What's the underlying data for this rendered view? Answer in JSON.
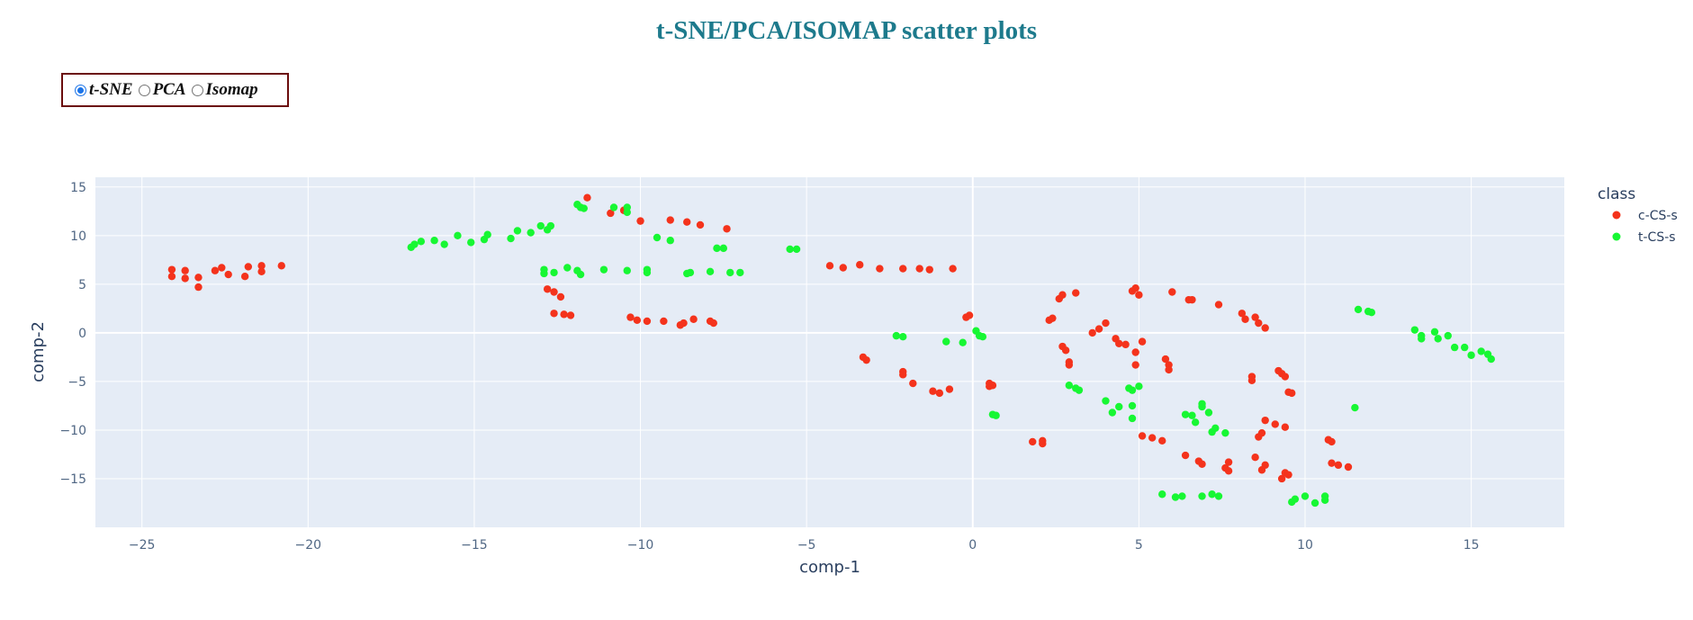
{
  "title": "t-SNE/PCA/ISOMAP scatter plots",
  "selector": {
    "options": [
      {
        "label": "t-SNE",
        "checked": true
      },
      {
        "label": "PCA",
        "checked": false
      },
      {
        "label": "Isomap",
        "checked": false
      }
    ]
  },
  "colors": {
    "title": "#1d7a8c",
    "plot_bg": "#e5ecf6",
    "grid": "#ffffff",
    "c-CS-s": "#f4331c",
    "t-CS-s": "#17f733"
  },
  "chart_data": {
    "type": "scatter",
    "xlabel": "comp-1",
    "ylabel": "comp-2",
    "xlim": [
      -26.4,
      17.8
    ],
    "ylim": [
      -20,
      16
    ],
    "xticks": [
      -25,
      -20,
      -15,
      -10,
      -5,
      0,
      5,
      10,
      15
    ],
    "yticks": [
      -15,
      -10,
      -5,
      0,
      5,
      10,
      15
    ],
    "xtick_labels": [
      "−25",
      "−20",
      "−15",
      "−10",
      "−5",
      "0",
      "5",
      "10",
      "15"
    ],
    "ytick_labels": [
      "−15",
      "−10",
      "−5",
      "0",
      "5",
      "10",
      "15"
    ],
    "grid": true,
    "legend_title": "class",
    "legend_position": "right",
    "series": [
      {
        "name": "c-CS-s",
        "points": [
          [
            -24.1,
            6.5
          ],
          [
            -24.1,
            5.8
          ],
          [
            -23.7,
            6.4
          ],
          [
            -23.7,
            5.6
          ],
          [
            -23.3,
            5.7
          ],
          [
            -23.3,
            4.7
          ],
          [
            -22.8,
            6.4
          ],
          [
            -22.6,
            6.7
          ],
          [
            -22.4,
            6.0
          ],
          [
            -21.9,
            5.8
          ],
          [
            -21.8,
            6.8
          ],
          [
            -21.4,
            6.9
          ],
          [
            -21.4,
            6.3
          ],
          [
            -20.8,
            6.9
          ],
          [
            -12.8,
            4.5
          ],
          [
            -12.6,
            4.2
          ],
          [
            -12.4,
            3.7
          ],
          [
            -12.6,
            2.0
          ],
          [
            -12.3,
            1.9
          ],
          [
            -12.1,
            1.8
          ],
          [
            -11.6,
            13.9
          ],
          [
            -10.9,
            12.3
          ],
          [
            -10.5,
            12.6
          ],
          [
            -10.3,
            1.6
          ],
          [
            -10.1,
            1.3
          ],
          [
            -10.0,
            11.5
          ],
          [
            -9.8,
            1.2
          ],
          [
            -9.3,
            1.2
          ],
          [
            -9.1,
            11.6
          ],
          [
            -8.8,
            0.8
          ],
          [
            -8.7,
            1.0
          ],
          [
            -8.6,
            11.4
          ],
          [
            -8.4,
            1.4
          ],
          [
            -8.2,
            11.1
          ],
          [
            -7.9,
            1.2
          ],
          [
            -7.8,
            1.0
          ],
          [
            -7.4,
            10.7
          ],
          [
            -4.3,
            6.9
          ],
          [
            -3.9,
            6.7
          ],
          [
            -3.4,
            7.0
          ],
          [
            -3.3,
            -2.5
          ],
          [
            -3.2,
            -2.8
          ],
          [
            -2.8,
            6.6
          ],
          [
            -2.1,
            6.6
          ],
          [
            -2.1,
            -4.0
          ],
          [
            -2.1,
            -4.3
          ],
          [
            -1.8,
            -5.2
          ],
          [
            -1.6,
            6.6
          ],
          [
            -1.3,
            6.5
          ],
          [
            -1.2,
            -6.0
          ],
          [
            -1.0,
            -6.2
          ],
          [
            -0.7,
            -5.8
          ],
          [
            -0.6,
            6.6
          ],
          [
            -0.2,
            1.6
          ],
          [
            -0.1,
            1.8
          ],
          [
            0.5,
            -5.2
          ],
          [
            0.5,
            -5.5
          ],
          [
            0.6,
            -5.4
          ],
          [
            1.8,
            -11.2
          ],
          [
            2.1,
            -11.1
          ],
          [
            2.1,
            -11.4
          ],
          [
            2.3,
            1.3
          ],
          [
            2.4,
            1.5
          ],
          [
            2.6,
            3.5
          ],
          [
            2.7,
            3.9
          ],
          [
            2.7,
            -1.4
          ],
          [
            2.8,
            -1.8
          ],
          [
            2.9,
            -3.0
          ],
          [
            2.9,
            -3.3
          ],
          [
            3.1,
            4.1
          ],
          [
            3.6,
            0.0
          ],
          [
            3.8,
            0.4
          ],
          [
            4.0,
            1.0
          ],
          [
            4.3,
            -0.6
          ],
          [
            4.4,
            -1.1
          ],
          [
            4.6,
            -1.2
          ],
          [
            4.8,
            4.3
          ],
          [
            4.9,
            4.6
          ],
          [
            4.9,
            -2.0
          ],
          [
            4.9,
            -3.3
          ],
          [
            5.0,
            3.9
          ],
          [
            5.1,
            -0.9
          ],
          [
            5.1,
            -10.6
          ],
          [
            5.4,
            -10.8
          ],
          [
            5.7,
            -11.1
          ],
          [
            5.8,
            -2.7
          ],
          [
            5.9,
            -3.3
          ],
          [
            5.9,
            -3.8
          ],
          [
            6.0,
            4.2
          ],
          [
            6.4,
            -12.6
          ],
          [
            6.5,
            3.4
          ],
          [
            6.6,
            3.4
          ],
          [
            6.8,
            -13.2
          ],
          [
            6.9,
            -13.5
          ],
          [
            7.4,
            2.9
          ],
          [
            7.6,
            -13.9
          ],
          [
            7.7,
            -13.3
          ],
          [
            7.7,
            -14.2
          ],
          [
            8.1,
            2.0
          ],
          [
            8.2,
            1.4
          ],
          [
            8.4,
            -4.5
          ],
          [
            8.4,
            -4.9
          ],
          [
            8.5,
            1.6
          ],
          [
            8.5,
            -12.8
          ],
          [
            8.6,
            -10.7
          ],
          [
            8.6,
            1.0
          ],
          [
            8.7,
            -10.3
          ],
          [
            8.7,
            -14.1
          ],
          [
            8.8,
            0.5
          ],
          [
            8.8,
            -9.0
          ],
          [
            8.8,
            -13.6
          ],
          [
            9.1,
            -9.4
          ],
          [
            9.2,
            -3.9
          ],
          [
            9.3,
            -15.0
          ],
          [
            9.3,
            -4.2
          ],
          [
            9.4,
            -9.7
          ],
          [
            9.4,
            -4.5
          ],
          [
            9.4,
            -14.4
          ],
          [
            9.5,
            -6.1
          ],
          [
            9.5,
            -14.6
          ],
          [
            9.6,
            -6.2
          ],
          [
            10.7,
            -11.0
          ],
          [
            10.8,
            -11.2
          ],
          [
            10.8,
            -13.4
          ],
          [
            11.0,
            -13.6
          ],
          [
            11.3,
            -13.8
          ]
        ]
      },
      {
        "name": "t-CS-s",
        "points": [
          [
            -16.9,
            8.8
          ],
          [
            -16.8,
            9.1
          ],
          [
            -16.6,
            9.4
          ],
          [
            -16.2,
            9.5
          ],
          [
            -15.9,
            9.1
          ],
          [
            -15.5,
            10.0
          ],
          [
            -15.1,
            9.3
          ],
          [
            -14.7,
            9.6
          ],
          [
            -14.6,
            10.1
          ],
          [
            -13.9,
            9.7
          ],
          [
            -13.7,
            10.5
          ],
          [
            -13.3,
            10.3
          ],
          [
            -13.0,
            11.0
          ],
          [
            -12.8,
            10.6
          ],
          [
            -12.7,
            11.0
          ],
          [
            -12.9,
            6.5
          ],
          [
            -12.9,
            6.1
          ],
          [
            -12.6,
            6.2
          ],
          [
            -12.2,
            6.7
          ],
          [
            -11.9,
            6.4
          ],
          [
            -11.8,
            6.0
          ],
          [
            -11.9,
            13.2
          ],
          [
            -11.8,
            12.9
          ],
          [
            -11.7,
            12.8
          ],
          [
            -11.1,
            6.5
          ],
          [
            -10.8,
            12.9
          ],
          [
            -10.4,
            12.9
          ],
          [
            -10.4,
            6.4
          ],
          [
            -10.4,
            12.4
          ],
          [
            -9.8,
            6.5
          ],
          [
            -9.8,
            6.2
          ],
          [
            -9.5,
            9.8
          ],
          [
            -9.1,
            9.5
          ],
          [
            -8.6,
            6.1
          ],
          [
            -8.5,
            6.2
          ],
          [
            -7.9,
            6.3
          ],
          [
            -7.7,
            8.7
          ],
          [
            -7.5,
            8.7
          ],
          [
            -7.3,
            6.2
          ],
          [
            -7.0,
            6.2
          ],
          [
            -5.5,
            8.6
          ],
          [
            -5.3,
            8.6
          ],
          [
            -2.3,
            -0.3
          ],
          [
            -2.1,
            -0.4
          ],
          [
            -0.8,
            -0.9
          ],
          [
            -0.3,
            -1.0
          ],
          [
            0.1,
            0.2
          ],
          [
            0.2,
            -0.3
          ],
          [
            0.3,
            -0.4
          ],
          [
            0.6,
            -8.4
          ],
          [
            0.7,
            -8.5
          ],
          [
            2.9,
            -5.4
          ],
          [
            3.2,
            -5.9
          ],
          [
            3.1,
            -5.7
          ],
          [
            4.0,
            -7.0
          ],
          [
            4.2,
            -8.2
          ],
          [
            4.4,
            -7.6
          ],
          [
            4.7,
            -5.7
          ],
          [
            4.8,
            -5.9
          ],
          [
            4.8,
            -7.5
          ],
          [
            4.8,
            -8.8
          ],
          [
            5.0,
            -5.5
          ],
          [
            5.7,
            -16.6
          ],
          [
            6.1,
            -16.9
          ],
          [
            6.3,
            -16.8
          ],
          [
            6.4,
            -8.4
          ],
          [
            6.6,
            -8.5
          ],
          [
            6.7,
            -9.2
          ],
          [
            6.9,
            -7.3
          ],
          [
            6.9,
            -16.8
          ],
          [
            6.9,
            -7.6
          ],
          [
            7.2,
            -16.6
          ],
          [
            7.1,
            -8.2
          ],
          [
            7.2,
            -10.2
          ],
          [
            7.3,
            -9.8
          ],
          [
            7.4,
            -16.8
          ],
          [
            7.6,
            -10.3
          ],
          [
            9.6,
            -17.4
          ],
          [
            9.7,
            -17.1
          ],
          [
            10.0,
            -16.8
          ],
          [
            10.3,
            -17.5
          ],
          [
            10.6,
            -17.2
          ],
          [
            10.6,
            -16.8
          ],
          [
            11.5,
            -7.7
          ],
          [
            11.6,
            2.4
          ],
          [
            11.9,
            2.2
          ],
          [
            12.0,
            2.1
          ],
          [
            13.3,
            0.3
          ],
          [
            13.5,
            -0.3
          ],
          [
            13.5,
            -0.6
          ],
          [
            13.9,
            0.1
          ],
          [
            14.0,
            -0.6
          ],
          [
            14.3,
            -0.3
          ],
          [
            14.5,
            -1.5
          ],
          [
            14.8,
            -1.5
          ],
          [
            15.0,
            -2.3
          ],
          [
            15.3,
            -1.9
          ],
          [
            15.5,
            -2.2
          ],
          [
            15.6,
            -2.7
          ]
        ]
      }
    ]
  }
}
